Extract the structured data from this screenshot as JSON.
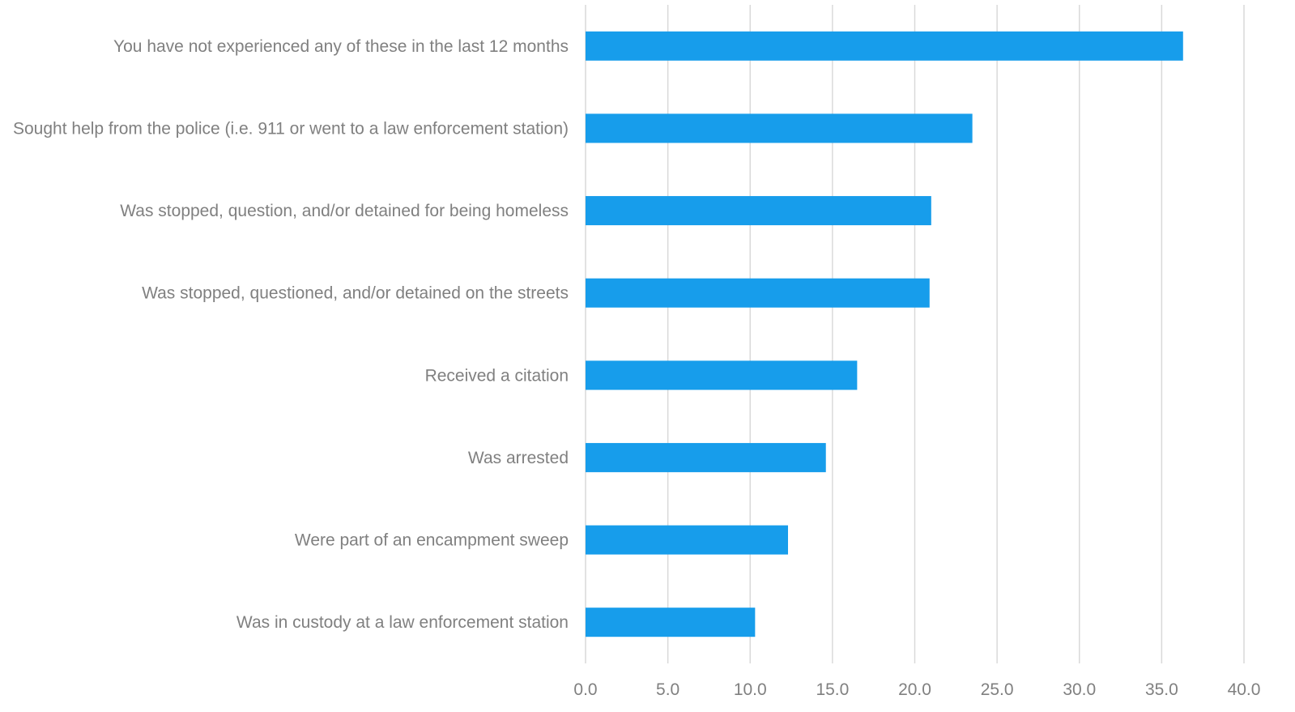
{
  "chart_data": {
    "type": "bar",
    "orientation": "horizontal",
    "title": "",
    "xlabel": "",
    "ylabel": "",
    "categories": [
      "You have not experienced any of these in the last 12 months",
      "Sought help from the police (i.e. 911 or went to a law enforcement station)",
      "Was stopped, question, and/or detained for being homeless",
      "Was stopped, questioned, and/or detained on the streets",
      "Received a citation",
      "Was arrested",
      "Were part of an encampment sweep",
      "Was in custody at a law enforcement station"
    ],
    "values": [
      36.3,
      23.5,
      21.0,
      20.9,
      16.5,
      14.6,
      12.3,
      10.3
    ],
    "xlim": [
      0,
      40
    ],
    "x_ticks": [
      "0.0",
      "5.0",
      "10.0",
      "15.0",
      "20.0",
      "25.0",
      "30.0",
      "35.0",
      "40.0"
    ],
    "grid": "vertical",
    "legend": "none",
    "bar_color": "#179DEB"
  }
}
